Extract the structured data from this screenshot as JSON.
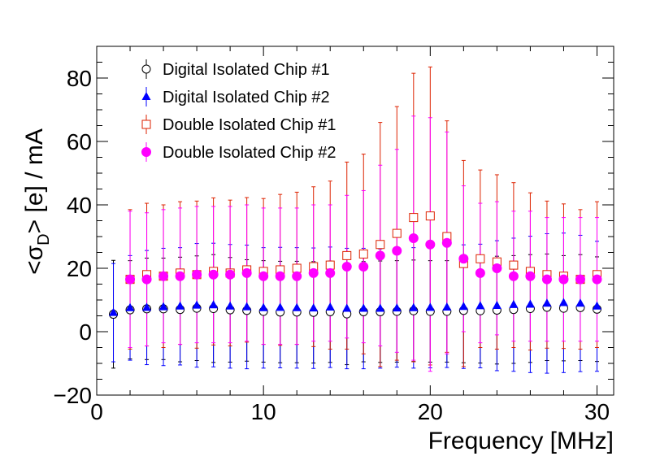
{
  "chart_data": {
    "type": "scatter",
    "title": "",
    "xlabel": "Frequency [MHz]",
    "ylabel_prefix": "<σ",
    "ylabel_sub": "D",
    "ylabel_suffix": "> [e] / mA",
    "xlim": [
      0,
      31
    ],
    "ylim": [
      -20,
      90
    ],
    "xticks": [
      0,
      10,
      20,
      30
    ],
    "yticks": [
      -20,
      0,
      20,
      40,
      60,
      80
    ],
    "xtick_labels": [
      "0",
      "10",
      "20",
      "30"
    ],
    "ytick_labels": [
      "−20",
      "0",
      "20",
      "40",
      "60",
      "80"
    ],
    "grid": false,
    "legend_position": "top-left",
    "series": [
      {
        "name": "Digital Isolated Chip #1",
        "marker": "open-circle",
        "color": "#000000",
        "x": [
          1,
          2,
          3,
          4,
          5,
          6,
          7,
          8,
          9,
          10,
          11,
          12,
          13,
          14,
          15,
          16,
          17,
          18,
          19,
          20,
          21,
          22,
          23,
          24,
          25,
          26,
          27,
          28,
          29,
          30
        ],
        "y": [
          5.5,
          6.9,
          7.2,
          7.2,
          7.0,
          7.4,
          7.3,
          6.9,
          6.7,
          6.4,
          6.2,
          6.2,
          6.1,
          6.3,
          5.6,
          6.3,
          6.3,
          6.4,
          6.6,
          6.4,
          6.4,
          6.7,
          6.6,
          6.8,
          7.0,
          7.3,
          7.7,
          7.4,
          7.6,
          7.1
        ],
        "err": [
          17,
          15.5,
          16,
          16,
          16.5,
          16.5,
          17,
          16.5,
          16,
          16,
          16,
          16,
          16,
          16,
          16,
          15.8,
          16,
          16,
          16,
          16,
          16,
          16.5,
          16.5,
          17,
          17,
          17,
          16.8,
          16.6,
          16.7,
          16.5
        ]
      },
      {
        "name": "Digital Isolated Chip #2",
        "marker": "filled-triangle",
        "color": "#0000ff",
        "x": [
          1,
          2,
          3,
          4,
          5,
          6,
          7,
          8,
          9,
          10,
          11,
          12,
          13,
          14,
          15,
          16,
          17,
          18,
          19,
          20,
          21,
          22,
          23,
          24,
          25,
          26,
          27,
          28,
          29,
          30
        ],
        "y": [
          6.0,
          7.5,
          7.6,
          7.8,
          8.0,
          8.3,
          8.4,
          8.0,
          7.8,
          7.5,
          7.6,
          7.5,
          7.4,
          7.7,
          7.3,
          7.3,
          7.3,
          7.4,
          7.5,
          7.6,
          7.7,
          7.9,
          8.1,
          8.2,
          8.5,
          8.6,
          8.9,
          9.1,
          8.9,
          8.0
        ],
        "err": [
          15.5,
          16.5,
          18,
          18.5,
          18.5,
          19.5,
          19.5,
          19.5,
          19.5,
          19,
          19,
          19,
          19,
          19,
          19,
          19,
          18.8,
          18.6,
          19,
          19,
          19,
          19.5,
          19.5,
          20.5,
          21,
          21.5,
          22,
          22,
          21.5,
          20.5
        ]
      },
      {
        "name": "Double Isolated Chip #1",
        "marker": "open-square",
        "color": "#dd2200",
        "x": [
          2,
          3,
          4,
          5,
          6,
          7,
          8,
          9,
          10,
          11,
          12,
          13,
          14,
          15,
          16,
          17,
          18,
          19,
          20,
          21,
          22,
          23,
          24,
          25,
          26,
          27,
          28,
          29,
          30
        ],
        "y": [
          16.5,
          18.0,
          17.5,
          18.5,
          18.0,
          19.0,
          18.5,
          19.5,
          19.0,
          19.5,
          20.0,
          20.5,
          21.0,
          24.0,
          24.5,
          27.5,
          31.0,
          36.0,
          36.5,
          30.0,
          21.5,
          23.0,
          22.0,
          21.0,
          19.0,
          18.0,
          17.5,
          16.5,
          18.0
        ],
        "err": [
          22,
          22.5,
          22.5,
          22.5,
          23.2,
          23.2,
          23,
          22.8,
          23,
          23.8,
          24,
          25.2,
          26.5,
          29.5,
          31.5,
          38.5,
          40,
          45.5,
          47,
          36.5,
          32.5,
          28,
          27.5,
          26,
          24.8,
          23.2,
          22.8,
          22,
          23
        ]
      },
      {
        "name": "Double Isolated Chip #2",
        "marker": "filled-circle",
        "color": "#ff00ff",
        "x": [
          2,
          3,
          4,
          5,
          6,
          7,
          8,
          9,
          10,
          11,
          12,
          13,
          14,
          15,
          16,
          17,
          18,
          19,
          20,
          21,
          22,
          23,
          24,
          25,
          26,
          27,
          28,
          29,
          30
        ],
        "y": [
          16.5,
          16.5,
          17.5,
          17.5,
          18.0,
          18.0,
          18.0,
          18.5,
          17.5,
          17.5,
          17.5,
          18.5,
          18.5,
          20.5,
          20.5,
          24.0,
          25.5,
          29.5,
          27.5,
          28.0,
          23.0,
          18.5,
          20.0,
          17.5,
          17.5,
          16.5,
          16.5,
          16.5,
          16.5
        ],
        "err": [
          21.5,
          21,
          21,
          21.5,
          21.5,
          21.5,
          21.5,
          21.5,
          21.5,
          21.5,
          21.5,
          21.5,
          21.5,
          22.5,
          24,
          28.5,
          32,
          38.5,
          40,
          35,
          23,
          22,
          21,
          20.5,
          20.5,
          19.5,
          19.5,
          19.5,
          19.5
        ]
      }
    ]
  }
}
